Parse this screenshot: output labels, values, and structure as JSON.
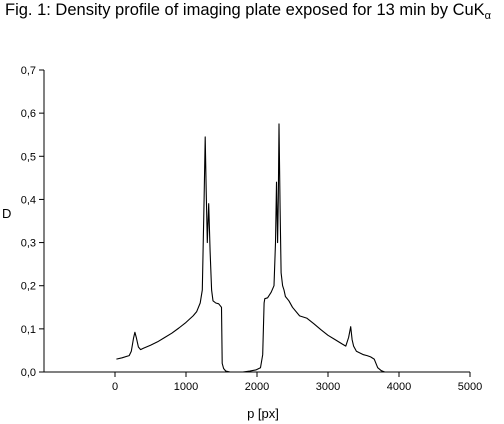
{
  "title": {
    "main": "Fig. 1: Density profile of imaging plate exposed for 13 min by CuK",
    "subscript": "α"
  },
  "chart_data": {
    "type": "line",
    "title": "Fig. 1: Density profile of imaging plate exposed for 13 min by CuKα",
    "xlabel": "p [px]",
    "ylabel": "D",
    "xlim": [
      -1000,
      5000
    ],
    "ylim": [
      0,
      0.7
    ],
    "xticks": [
      0,
      1000,
      2000,
      3000,
      4000,
      5000
    ],
    "yticks": [
      0.0,
      0.1,
      0.2,
      0.3,
      0.4,
      0.5,
      0.6,
      0.7
    ],
    "xtick_labels": [
      "0",
      "1000",
      "2000",
      "3000",
      "4000",
      "5000"
    ],
    "ytick_labels": [
      "0,0",
      "0,1",
      "0,2",
      "0,3",
      "0,4",
      "0,5",
      "0,6",
      "0,7"
    ],
    "grid": false,
    "legend": "none",
    "series": [
      {
        "color": "#000000",
        "x": [
          20,
          100,
          200,
          230,
          260,
          280,
          300,
          330,
          360,
          400,
          500,
          600,
          700,
          800,
          900,
          1000,
          1100,
          1150,
          1200,
          1230,
          1255,
          1270,
          1285,
          1300,
          1320,
          1340,
          1360,
          1380,
          1420,
          1460,
          1500,
          1510,
          1530,
          1560,
          1620,
          1700,
          1800,
          1900,
          1990,
          2050,
          2080,
          2100,
          2110,
          2150,
          2200,
          2240,
          2260,
          2275,
          2290,
          2300,
          2310,
          2325,
          2340,
          2360,
          2380,
          2400,
          2450,
          2500,
          2600,
          2700,
          2800,
          2900,
          3000,
          3100,
          3200,
          3250,
          3290,
          3320,
          3340,
          3360,
          3400,
          3500,
          3550,
          3600,
          3650,
          3700,
          3750,
          3800
        ],
        "y": [
          0.03,
          0.033,
          0.038,
          0.048,
          0.078,
          0.092,
          0.08,
          0.058,
          0.052,
          0.055,
          0.062,
          0.07,
          0.08,
          0.09,
          0.102,
          0.115,
          0.13,
          0.14,
          0.16,
          0.19,
          0.4,
          0.545,
          0.42,
          0.3,
          0.39,
          0.28,
          0.19,
          0.165,
          0.16,
          0.158,
          0.15,
          0.02,
          0.008,
          0.002,
          0.0,
          0.0,
          0.0,
          0.002,
          0.005,
          0.01,
          0.04,
          0.16,
          0.17,
          0.172,
          0.185,
          0.2,
          0.3,
          0.44,
          0.3,
          0.4,
          0.575,
          0.38,
          0.23,
          0.2,
          0.19,
          0.175,
          0.165,
          0.15,
          0.13,
          0.125,
          0.112,
          0.098,
          0.085,
          0.075,
          0.065,
          0.06,
          0.08,
          0.105,
          0.075,
          0.06,
          0.048,
          0.04,
          0.038,
          0.035,
          0.03,
          0.01,
          0.003,
          0.0
        ]
      }
    ]
  }
}
